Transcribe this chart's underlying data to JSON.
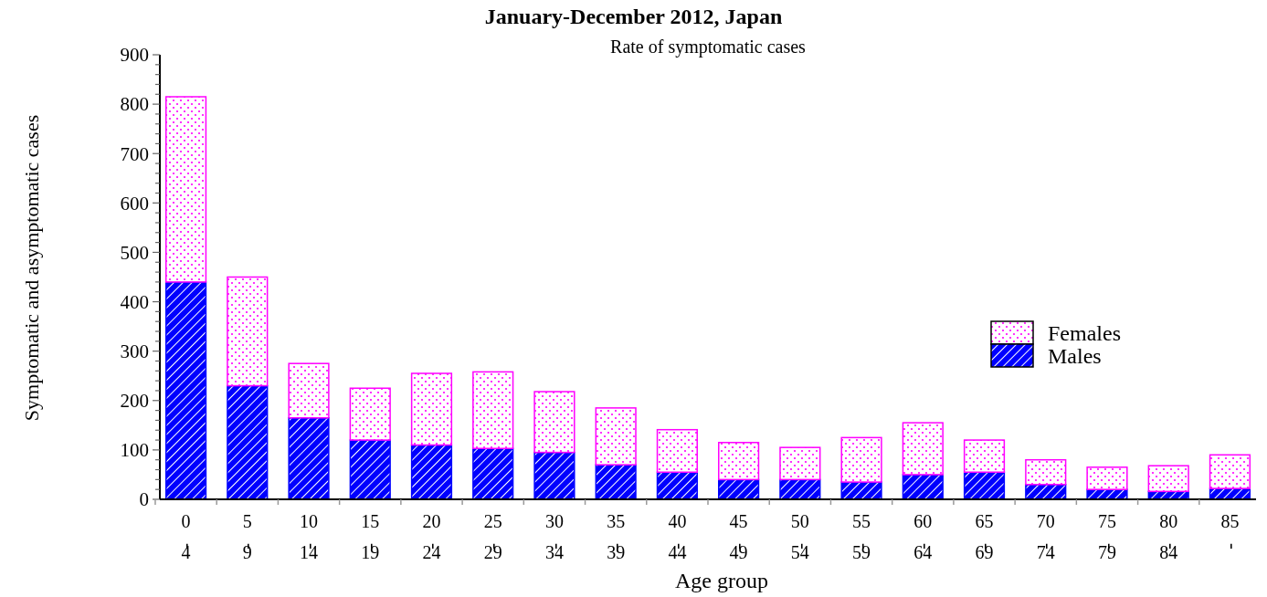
{
  "chart_data": {
    "type": "bar",
    "title": "January-December 2012, Japan",
    "xlabel": "Age group",
    "ylabel": "Symptomatic and asymptomatic cases",
    "annotations": [
      "Rate of symptomatic cases"
    ],
    "categories": [
      "0-4",
      "5-9",
      "10-14",
      "15-19",
      "20-24",
      "25-29",
      "30-34",
      "35-39",
      "40-44",
      "45-49",
      "50-54",
      "55-59",
      "60-64",
      "65-69",
      "70-74",
      "75-79",
      "80-84",
      "85-"
    ],
    "stacked": true,
    "legend": "right",
    "ylim": [
      0,
      900
    ],
    "yticks": [
      0,
      {
        "value": 20,
        "label": null
      },
      {
        "value": 40,
        "label": null
      },
      {
        "value": 60,
        "label": null
      },
      {
        "value": 80,
        "label": null
      },
      100,
      {
        "value": 120,
        "label": null
      },
      {
        "value": 140,
        "label": null
      },
      {
        "value": 160,
        "label": null
      },
      {
        "value": 180,
        "label": null
      },
      200,
      {
        "value": 220,
        "label": null
      },
      {
        "value": 240,
        "label": null
      },
      {
        "value": 260,
        "label": null
      },
      {
        "value": 280,
        "label": null
      },
      300,
      {
        "value": 320,
        "label": null
      },
      {
        "value": 340,
        "label": null
      },
      {
        "value": 360,
        "label": null
      },
      {
        "value": 380,
        "label": null
      },
      400,
      {
        "value": 420,
        "label": null
      },
      {
        "value": 440,
        "label": null
      },
      {
        "value": 460,
        "label": null
      },
      {
        "value": 480,
        "label": null
      },
      500,
      {
        "value": 520,
        "label": null
      },
      {
        "value": 540,
        "label": null
      },
      {
        "value": 560,
        "label": null
      },
      {
        "value": 580,
        "label": null
      },
      600,
      {
        "value": 620,
        "label": null
      },
      {
        "value": 640,
        "label": null
      },
      {
        "value": 660,
        "label": null
      },
      {
        "value": 680,
        "label": null
      },
      700,
      {
        "value": 720,
        "label": null
      },
      {
        "value": 740,
        "label": null
      },
      {
        "value": 760,
        "label": null
      },
      {
        "value": 780,
        "label": null
      },
      800,
      {
        "value": 820,
        "label": null
      },
      {
        "value": 840,
        "label": null
      },
      {
        "value": 860,
        "label": null
      },
      {
        "value": 880,
        "label": null
      },
      900
    ],
    "series": [
      {
        "name": "Males",
        "color": "#0000ff",
        "values": [
          440,
          230,
          165,
          120,
          110,
          103,
          95,
          70,
          55,
          40,
          40,
          35,
          50,
          55,
          30,
          20,
          16,
          22
        ]
      },
      {
        "name": "Females",
        "color": "#ff00ff",
        "values": [
          375,
          220,
          110,
          105,
          145,
          155,
          123,
          115,
          86,
          75,
          65,
          90,
          105,
          65,
          50,
          45,
          52,
          68
        ]
      }
    ]
  }
}
